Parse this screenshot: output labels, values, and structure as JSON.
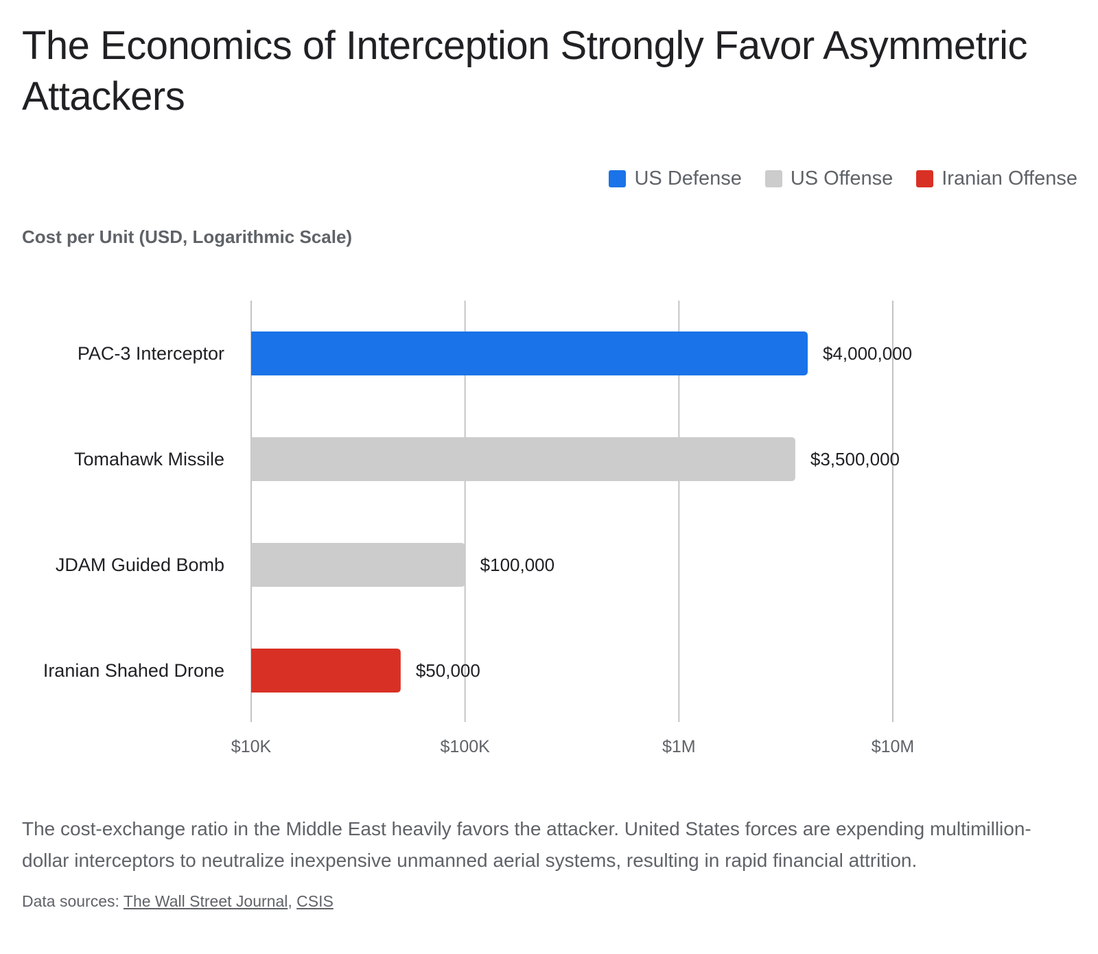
{
  "title": "The Economics of Interception Strongly Favor Asymmetric Attackers",
  "legend": [
    {
      "label": "US Defense",
      "color": "#1a73e8"
    },
    {
      "label": "US Offense",
      "color": "#cccccc"
    },
    {
      "label": "Iranian Offense",
      "color": "#d93025"
    }
  ],
  "chart_data": {
    "type": "bar",
    "orientation": "horizontal",
    "x_scale": "log",
    "xlabel": "Cost per Unit (USD, Logarithmic Scale)",
    "xlim": [
      10000,
      10000000
    ],
    "x_ticks": [
      {
        "value": 10000,
        "label": "$10K"
      },
      {
        "value": 100000,
        "label": "$100K"
      },
      {
        "value": 1000000,
        "label": "$1M"
      },
      {
        "value": 10000000,
        "label": "$10M"
      }
    ],
    "grid": true,
    "legend_position": "top-right",
    "categories": [
      "PAC-3 Interceptor",
      "Tomahawk Missile",
      "JDAM Guided Bomb",
      "Iranian Shahed Drone"
    ],
    "values": [
      4000000,
      3500000,
      100000,
      50000
    ],
    "value_labels": [
      "$4,000,000",
      "$3,500,000",
      "$100,000",
      "$50,000"
    ],
    "groups": [
      "US Defense",
      "US Offense",
      "US Offense",
      "Iranian Offense"
    ],
    "colors": [
      "#1a73e8",
      "#cccccc",
      "#cccccc",
      "#d93025"
    ]
  },
  "caption": "The cost-exchange ratio in the Middle East heavily favors the attacker. United States forces are expending multimillion-dollar interceptors to neutralize inexpensive unmanned aerial systems, resulting in rapid financial attrition.",
  "sources": {
    "prefix": "Data sources:",
    "links": [
      "The Wall Street Journal",
      "CSIS"
    ],
    "separator": ","
  }
}
